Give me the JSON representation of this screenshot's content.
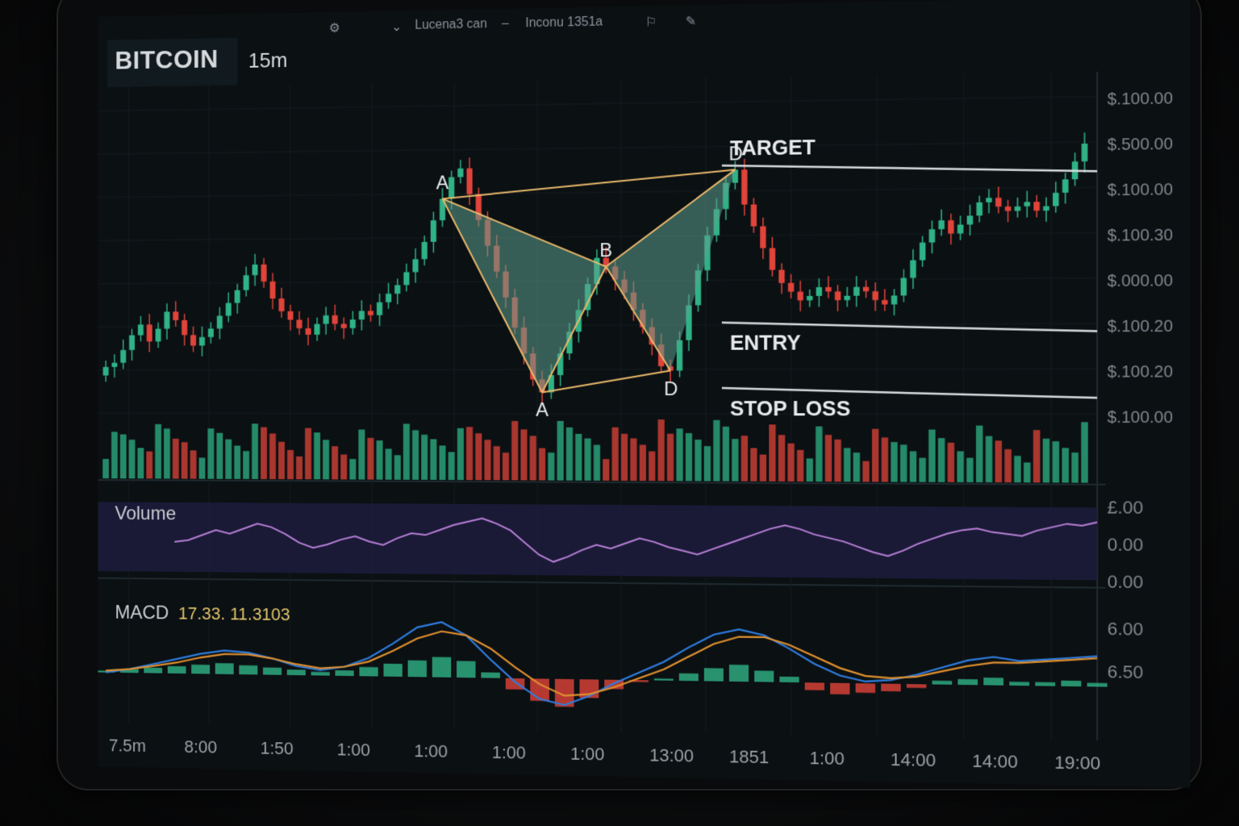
{
  "top_bar": {
    "item1": "Lucena3 can",
    "item2": "Inconu 1351a"
  },
  "header": {
    "symbol": "BITCOIN",
    "interval": "15m"
  },
  "colors": {
    "up": "#2fb386",
    "down": "#e0443a",
    "pattern_line": "#e9b96a",
    "pattern_fill": "#5c9e8e",
    "macd_line": "#2e7de0",
    "signal_line": "#e0902e",
    "volume_line": "#b77fd6",
    "level_line": "#d8dcdf"
  },
  "chart_data": [
    {
      "type": "candlestick",
      "title": "BITCOIN 15m",
      "price_ticks": [
        "$.100.00",
        "$.500.00",
        "$.100.00",
        "$.100.30",
        "$.000.00",
        "$.100.20",
        "$.100.20",
        "$.100.00"
      ],
      "candles_close": [
        40,
        42,
        48,
        55,
        60,
        52,
        58,
        66,
        62,
        55,
        50,
        54,
        58,
        64,
        70,
        76,
        83,
        88,
        80,
        72,
        66,
        62,
        58,
        55,
        60,
        64,
        60,
        58,
        62,
        66,
        64,
        70,
        74,
        78,
        84,
        90,
        98,
        108,
        118,
        128,
        132,
        120,
        108,
        96,
        84,
        72,
        58,
        46,
        34,
        28,
        36,
        46,
        56,
        66,
        78,
        90,
        86,
        80,
        74,
        66,
        58,
        50,
        40,
        38,
        52,
        68,
        84,
        100,
        112,
        124,
        130,
        114,
        104,
        94,
        84,
        78,
        74,
        70,
        72,
        76,
        74,
        70,
        72,
        76,
        74,
        70,
        68,
        72,
        80,
        88,
        96,
        102,
        106,
        100,
        104,
        108,
        114,
        116,
        112,
        110,
        112,
        114,
        110,
        112,
        118,
        124,
        132,
        140
      ],
      "pattern": {
        "points": [
          {
            "label": "A",
            "index": 38
          },
          {
            "label": "A",
            "index": 49
          },
          {
            "label": "B",
            "index": 56
          },
          {
            "label": "D",
            "index": 63
          },
          {
            "label": "D",
            "index": 70
          }
        ]
      },
      "levels": [
        {
          "label": "TARGET",
          "price": 132
        },
        {
          "label": "ENTRY",
          "price": 60
        },
        {
          "label": "STOP LOSS",
          "price": 30
        }
      ]
    },
    {
      "type": "line",
      "title": "Volume",
      "ticks": [
        "£.00",
        "0.00",
        "0.00"
      ],
      "values": [
        50,
        52,
        58,
        64,
        60,
        66,
        72,
        68,
        60,
        50,
        44,
        48,
        54,
        58,
        52,
        48,
        56,
        62,
        60,
        66,
        72,
        76,
        80,
        74,
        66,
        52,
        38,
        30,
        36,
        44,
        50,
        46,
        52,
        58,
        54,
        48,
        44,
        40,
        46,
        52,
        58,
        64,
        70,
        74,
        70,
        64,
        60,
        56,
        50,
        44,
        40,
        46,
        54,
        60,
        66,
        70,
        72,
        68,
        66,
        64,
        70,
        74,
        78,
        76,
        80
      ]
    },
    {
      "type": "macd",
      "title": "MACD",
      "title_values": "17.33. 11.3103",
      "ticks": [
        "6.00",
        "6.50"
      ],
      "macd": [
        0,
        4,
        10,
        16,
        22,
        26,
        24,
        18,
        10,
        6,
        10,
        20,
        36,
        54,
        60,
        46,
        20,
        -4,
        -22,
        -28,
        -18,
        -4,
        8,
        20,
        36,
        50,
        56,
        50,
        36,
        20,
        8,
        2,
        4,
        10,
        18,
        26,
        30,
        26,
        28,
        30,
        32
      ],
      "signal": [
        2,
        4,
        8,
        12,
        18,
        22,
        22,
        18,
        12,
        8,
        10,
        16,
        28,
        42,
        50,
        46,
        32,
        12,
        -6,
        -18,
        -16,
        -8,
        2,
        12,
        26,
        40,
        48,
        48,
        40,
        28,
        16,
        8,
        6,
        8,
        14,
        20,
        24,
        24,
        26,
        28,
        30
      ],
      "histogram": [
        2,
        4,
        6,
        8,
        10,
        12,
        10,
        8,
        6,
        4,
        6,
        10,
        14,
        18,
        22,
        18,
        6,
        -12,
        -24,
        -30,
        -20,
        -10,
        -2,
        2,
        8,
        14,
        18,
        12,
        6,
        -8,
        -12,
        -10,
        -8,
        -4,
        4,
        6,
        8,
        4,
        4,
        6,
        4
      ]
    }
  ],
  "time_axis": [
    "7.5m",
    "8:00",
    "1:50",
    "1:00",
    "1:00",
    "1:00",
    "1:00",
    "13:00",
    "1851",
    "1:00",
    "14:00",
    "14:00",
    "19:00"
  ]
}
